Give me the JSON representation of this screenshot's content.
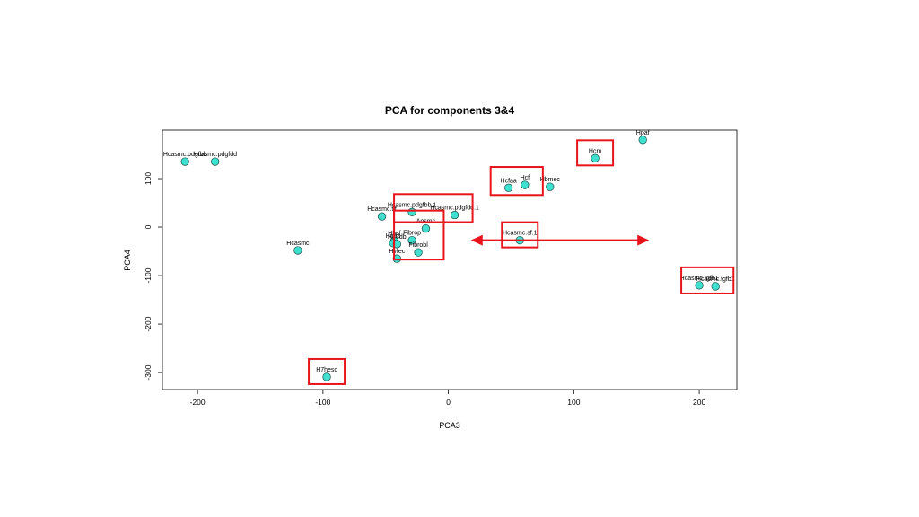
{
  "chart_data": {
    "type": "scatter",
    "title": "PCA for components 3&4",
    "xlabel": "PCA3",
    "ylabel": "PCA4",
    "xlim": [
      -228,
      230
    ],
    "ylim": [
      -335,
      200
    ],
    "xticks": [
      -200,
      -100,
      0,
      100,
      200
    ],
    "yticks": [
      -300,
      -200,
      -100,
      0,
      100
    ],
    "grid": false,
    "marker_color": "#40E0D0",
    "highlight_color": "#E8141C",
    "points": [
      {
        "label": "Hcasmc.pdgfbb",
        "x": -210,
        "y": 135
      },
      {
        "label": "Hcasmc.pdgfdd",
        "x": -186,
        "y": 135
      },
      {
        "label": "Hcasmc",
        "x": -120,
        "y": -48
      },
      {
        "label": "H7hesc",
        "x": -97,
        "y": -309
      },
      {
        "label": "Hcasmc.tif",
        "x": -53,
        "y": 22
      },
      {
        "label": "Hcasmc.pdgfbb.1",
        "x": -29,
        "y": 31
      },
      {
        "label": "Hcasmc.pdgfdd.1",
        "x": 5,
        "y": 25
      },
      {
        "label": "Aosmc",
        "x": -18,
        "y": -3
      },
      {
        "label": "Fibrop",
        "x": -29,
        "y": -27
      },
      {
        "label": "Hhsf",
        "x": -43,
        "y": -28
      },
      {
        "label": "Hmfb",
        "x": -44,
        "y": -33
      },
      {
        "label": "Hmfdb",
        "x": -41,
        "y": -35
      },
      {
        "label": "Fibrobl",
        "x": -24,
        "y": -52
      },
      {
        "label": "Hvfec",
        "x": -41,
        "y": -65
      },
      {
        "label": "Hcfaa",
        "x": 48,
        "y": 81
      },
      {
        "label": "Hcf",
        "x": 61,
        "y": 87
      },
      {
        "label": "Hbmec",
        "x": 81,
        "y": 83
      },
      {
        "label": "Hcasmc.sf.1",
        "x": 57,
        "y": -27
      },
      {
        "label": "Hcm",
        "x": 117,
        "y": 142
      },
      {
        "label": "Hpaf",
        "x": 155,
        "y": 180
      },
      {
        "label": "Hcasmc.tgfb1",
        "x": 200,
        "y": -120
      },
      {
        "label": "Hcasmc.tgfb1",
        "x": 213,
        "y": -122
      }
    ],
    "annotations": [
      {
        "type": "box",
        "around": [
          "H7hesc"
        ]
      },
      {
        "type": "box",
        "around": [
          "Hcasmc.pdgfbb.1",
          "Hcasmc.pdgfdd.1"
        ]
      },
      {
        "type": "box",
        "around": [
          "Aosmc",
          "Fibrop",
          "Fibrobl"
        ]
      },
      {
        "type": "box",
        "around": [
          "Hcfaa",
          "Hcf"
        ]
      },
      {
        "type": "box",
        "around": [
          "Hcasmc.sf.1"
        ]
      },
      {
        "type": "box",
        "around": [
          "Hcm"
        ]
      },
      {
        "type": "box",
        "around": [
          "Hcasmc.tgfb1"
        ]
      },
      {
        "type": "double-arrow",
        "description": "red double-headed arrow through Hcasmc.sf.1"
      }
    ]
  }
}
